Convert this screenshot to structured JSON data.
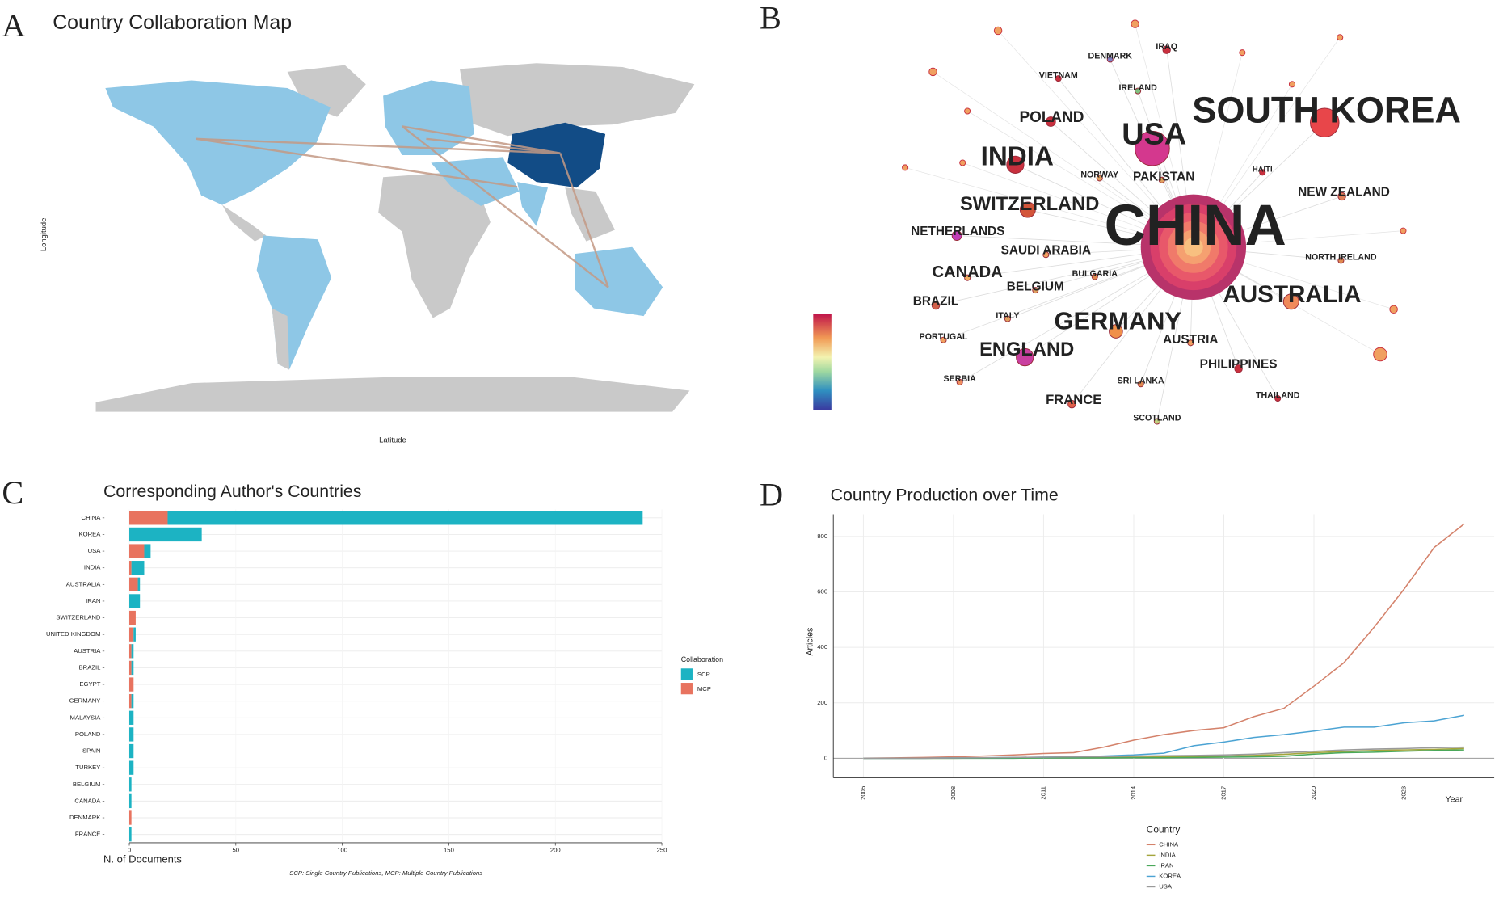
{
  "panel_labels": [
    "A",
    "B",
    "C",
    "D"
  ],
  "map": {
    "title": "Country Collaboration Map",
    "x_label": "Latitude",
    "y_label": "Longitude"
  },
  "network": {
    "nodes": [
      {
        "label": "SOUTH KOREA"
      },
      {
        "label": "USA"
      },
      {
        "label": "INDIA"
      },
      {
        "label": "POLAND"
      },
      {
        "label": "CHINA"
      },
      {
        "label": "SWITZERLAND"
      },
      {
        "label": "NETHERLANDS"
      },
      {
        "label": "SAUDI ARABIA"
      },
      {
        "label": "CANADA"
      },
      {
        "label": "BELGIUM"
      },
      {
        "label": "BULGARIA"
      },
      {
        "label": "BRAZIL"
      },
      {
        "label": "ITALY"
      },
      {
        "label": "GERMANY"
      },
      {
        "label": "AUSTRALIA"
      },
      {
        "label": "PORTUGAL"
      },
      {
        "label": "ENGLAND"
      },
      {
        "label": "AUSTRIA"
      },
      {
        "label": "SERBIA"
      },
      {
        "label": "FRANCE"
      },
      {
        "label": "SRI LANKA"
      },
      {
        "label": "SCOTLAND"
      },
      {
        "label": "PHILIPPINES"
      },
      {
        "label": "THAILAND"
      },
      {
        "label": "NEW ZEALAND"
      },
      {
        "label": "NORTH IRELAND"
      },
      {
        "label": "HAITI"
      },
      {
        "label": "PAKISTAN"
      },
      {
        "label": "NORWAY"
      },
      {
        "label": "IRELAND"
      },
      {
        "label": "DENMARK"
      },
      {
        "label": "IRAQ"
      },
      {
        "label": "VIETNAM"
      }
    ]
  },
  "chart_data": [
    {
      "type": "bar",
      "orientation": "horizontal",
      "stacked": true,
      "title": "Corresponding Author's Countries",
      "x_label": "N. of Documents",
      "legend_title": "Collaboration",
      "note": "SCP: Single Country Publications, MCP: Multiple Country Publications",
      "categories": [
        "CHINA",
        "KOREA",
        "USA",
        "INDIA",
        "AUSTRALIA",
        "IRAN",
        "SWITZERLAND",
        "UNITED KINGDOM",
        "AUSTRIA",
        "BRAZIL",
        "EGYPT",
        "GERMANY",
        "MALAYSIA",
        "POLAND",
        "SPAIN",
        "TURKEY",
        "BELGIUM",
        "CANADA",
        "DENMARK",
        "FRANCE"
      ],
      "series": [
        {
          "name": "SCP",
          "color": "#1cb3c3",
          "values": [
            223,
            34,
            3,
            6,
            1,
            5,
            0,
            1,
            1,
            1,
            0,
            1,
            2,
            2,
            2,
            2,
            1,
            1,
            0,
            1
          ]
        },
        {
          "name": "MCP",
          "color": "#e8735f",
          "values": [
            18,
            0,
            7,
            1,
            4,
            0,
            3,
            2,
            1,
            1,
            2,
            1,
            0,
            0,
            0,
            0,
            0,
            0,
            1,
            0
          ]
        }
      ],
      "xlim": [
        0,
        250
      ],
      "xticks": [
        0,
        50,
        100,
        150,
        200,
        250
      ],
      "grid": true
    },
    {
      "type": "line",
      "title": "Country Production over Time",
      "x_label": "Year",
      "y_label": "Articles",
      "legend_title": "Country",
      "x": [
        2005,
        2006,
        2007,
        2008,
        2009,
        2010,
        2011,
        2012,
        2013,
        2014,
        2015,
        2016,
        2017,
        2018,
        2019,
        2020,
        2021,
        2022,
        2023,
        2024,
        2025
      ],
      "series": [
        {
          "name": "CHINA",
          "color": "#d4826b",
          "values": [
            0,
            1,
            3,
            5,
            8,
            12,
            17,
            20,
            40,
            65,
            85,
            100,
            110,
            150,
            180,
            260,
            345,
            472,
            610,
            760,
            845
          ]
        },
        {
          "name": "INDIA",
          "color": "#a3a53c",
          "values": [
            0,
            0,
            0,
            0,
            1,
            1,
            2,
            2,
            3,
            4,
            5,
            6,
            8,
            10,
            14,
            20,
            24,
            28,
            30,
            32,
            35
          ]
        },
        {
          "name": "IRAN",
          "color": "#4aa85a",
          "values": [
            0,
            0,
            0,
            0,
            0,
            0,
            1,
            1,
            1,
            2,
            2,
            3,
            4,
            5,
            7,
            15,
            20,
            22,
            25,
            28,
            30
          ]
        },
        {
          "name": "KOREA",
          "color": "#4ba3d3",
          "values": [
            0,
            0,
            0,
            1,
            2,
            3,
            4,
            5,
            8,
            12,
            18,
            45,
            58,
            75,
            85,
            98,
            112,
            112,
            128,
            135,
            155
          ]
        },
        {
          "name": "USA",
          "color": "#9a9a9a",
          "values": [
            0,
            0,
            0,
            1,
            2,
            3,
            4,
            5,
            6,
            8,
            9,
            10,
            12,
            15,
            20,
            25,
            30,
            33,
            35,
            38,
            40
          ]
        }
      ],
      "xlim": [
        2004,
        2026
      ],
      "xticks": [
        2005,
        2008,
        2011,
        2014,
        2017,
        2020,
        2023
      ],
      "ylim": [
        -70,
        880
      ],
      "yticks": [
        0,
        200,
        400,
        600,
        800
      ],
      "grid": true
    }
  ]
}
